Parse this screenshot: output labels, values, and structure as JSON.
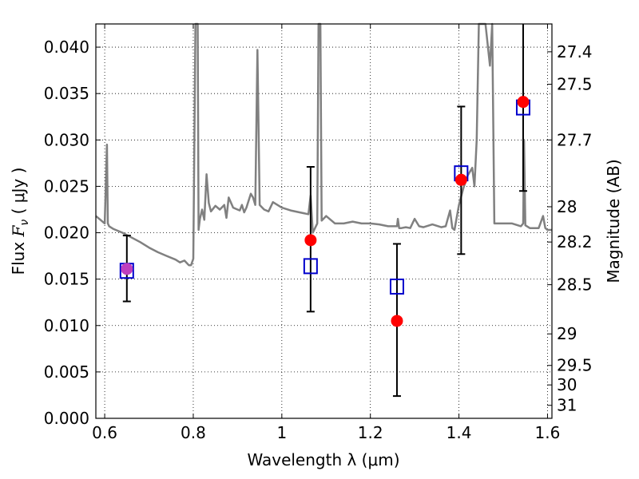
{
  "chart_data": {
    "type": "scatter",
    "title": "",
    "xlabel": "Wavelength  λ (μm)",
    "ylabel": "Flux  F_ν  ( μJy )",
    "ylabel_parts": {
      "prefix": "Flux ",
      "symbol": "F",
      "subscript": "ν",
      "suffix": " ( μJy )"
    },
    "y2label": "Magnitude (AB)",
    "xlim": [
      0.58,
      1.61
    ],
    "ylim": [
      0.0,
      0.0425
    ],
    "grid": true,
    "x_ticks": [
      0.6,
      0.8,
      1.0,
      1.2,
      1.4,
      1.6
    ],
    "x_tick_labels": [
      "0.6",
      "0.8",
      "1",
      "1.2",
      "1.4",
      "1.6"
    ],
    "y_ticks": [
      0.0,
      0.005,
      0.01,
      0.015,
      0.02,
      0.025,
      0.03,
      0.035,
      0.04
    ],
    "y_tick_labels": [
      "0.000",
      "0.005",
      "0.010",
      "0.015",
      "0.020",
      "0.025",
      "0.030",
      "0.035",
      "0.040"
    ],
    "y2_ticks": [
      {
        "label": "27.4",
        "flux": 0.0395
      },
      {
        "label": "27.5",
        "flux": 0.036
      },
      {
        "label": "27.7",
        "flux": 0.03
      },
      {
        "label": "28",
        "flux": 0.0228
      },
      {
        "label": "28.2",
        "flux": 0.019
      },
      {
        "label": "28.5",
        "flux": 0.0144
      },
      {
        "label": "29",
        "flux": 0.0091
      },
      {
        "label": "29.5",
        "flux": 0.0057
      },
      {
        "label": "30",
        "flux": 0.0036
      },
      {
        "label": "31",
        "flux": 0.0014
      }
    ],
    "series": [
      {
        "kind": "model_spectrum",
        "color": "#808080",
        "x": [
          0.58,
          0.6,
          0.605,
          0.607,
          0.61,
          0.62,
          0.64,
          0.66,
          0.68,
          0.7,
          0.72,
          0.74,
          0.76,
          0.77,
          0.78,
          0.79,
          0.795,
          0.8,
          0.805,
          0.807,
          0.81,
          0.812,
          0.815,
          0.82,
          0.825,
          0.83,
          0.835,
          0.84,
          0.845,
          0.85,
          0.86,
          0.87,
          0.875,
          0.88,
          0.89,
          0.9,
          0.905,
          0.91,
          0.915,
          0.92,
          0.93,
          0.935,
          0.94,
          0.945,
          0.95,
          0.96,
          0.97,
          0.98,
          1.0,
          1.02,
          1.04,
          1.06,
          1.065,
          1.07,
          1.08,
          1.083,
          1.085,
          1.087,
          1.09,
          1.1,
          1.12,
          1.14,
          1.16,
          1.18,
          1.2,
          1.22,
          1.24,
          1.26,
          1.262,
          1.265,
          1.27,
          1.28,
          1.29,
          1.3,
          1.31,
          1.32,
          1.34,
          1.36,
          1.37,
          1.38,
          1.385,
          1.39,
          1.4,
          1.41,
          1.42,
          1.43,
          1.435,
          1.44,
          1.445,
          1.45,
          1.46,
          1.47,
          1.475,
          1.48,
          1.5,
          1.52,
          1.54,
          1.545,
          1.547,
          1.55,
          1.56,
          1.57,
          1.58,
          1.59,
          1.595,
          1.6,
          1.61
        ],
        "y": [
          0.0218,
          0.021,
          0.0295,
          0.021,
          0.0207,
          0.0204,
          0.02,
          0.0195,
          0.019,
          0.0184,
          0.0179,
          0.0175,
          0.0171,
          0.0168,
          0.017,
          0.0165,
          0.0165,
          0.0172,
          0.0425,
          0.0425,
          0.0425,
          0.0203,
          0.0215,
          0.0225,
          0.0214,
          0.0263,
          0.0232,
          0.0223,
          0.0226,
          0.0229,
          0.0225,
          0.023,
          0.0216,
          0.0238,
          0.0227,
          0.0225,
          0.0224,
          0.023,
          0.0222,
          0.0227,
          0.0242,
          0.0238,
          0.023,
          0.0397,
          0.023,
          0.0225,
          0.0223,
          0.0233,
          0.0227,
          0.0224,
          0.0222,
          0.022,
          0.024,
          0.02,
          0.021,
          0.0425,
          0.0425,
          0.0425,
          0.0213,
          0.0218,
          0.021,
          0.021,
          0.0212,
          0.021,
          0.021,
          0.0209,
          0.0207,
          0.0207,
          0.0215,
          0.0205,
          0.0205,
          0.0206,
          0.0205,
          0.0215,
          0.0207,
          0.0206,
          0.0209,
          0.0206,
          0.0207,
          0.0224,
          0.0205,
          0.0203,
          0.023,
          0.0248,
          0.0262,
          0.027,
          0.025,
          0.03,
          0.0425,
          0.0425,
          0.0425,
          0.038,
          0.0425,
          0.021,
          0.021,
          0.021,
          0.0207,
          0.021,
          0.03,
          0.0208,
          0.0205,
          0.0205,
          0.0205,
          0.0218,
          0.0205,
          0.0203,
          0.0203
        ]
      },
      {
        "kind": "observed_points_with_errors",
        "color": "#ff0000",
        "x": [
          0.65,
          1.065,
          1.26,
          1.405,
          1.545
        ],
        "y": [
          0.0161,
          0.0192,
          0.0105,
          0.0257,
          0.0341
        ],
        "yerr_low": [
          0.0126,
          0.0115,
          0.0024,
          0.0177,
          0.0245
        ],
        "yerr_high": [
          0.0197,
          0.0271,
          0.0188,
          0.0336,
          0.0425
        ]
      },
      {
        "kind": "model_band_fluxes",
        "color": "#0000cc",
        "x": [
          0.65,
          1.065,
          1.26,
          1.405,
          1.545
        ],
        "y": [
          0.0159,
          0.0164,
          0.0142,
          0.0264,
          0.0335
        ]
      }
    ],
    "overlap_marker_color": "#bf3fbf"
  }
}
